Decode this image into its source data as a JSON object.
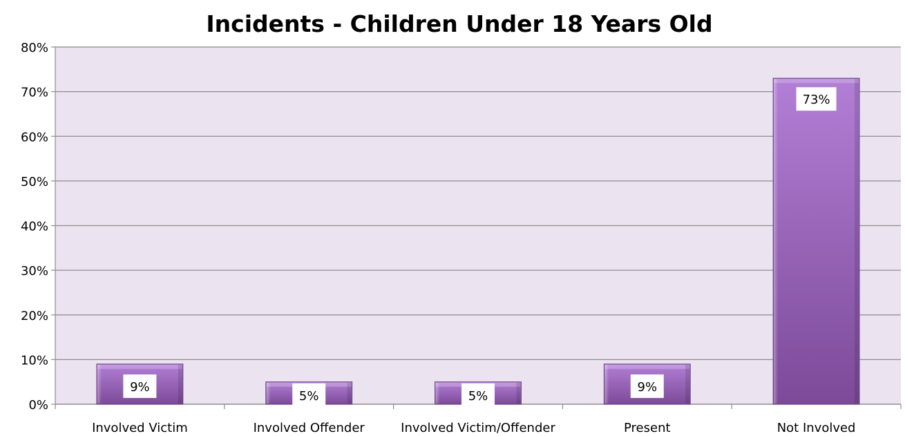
{
  "chart_data": {
    "type": "bar",
    "title": "Incidents - Children Under 18 Years Old",
    "xlabel": "",
    "ylabel": "",
    "categories": [
      "Involved Victim",
      "Involved Offender",
      "Involved Victim/Offender",
      "Present",
      "Not Involved"
    ],
    "values": [
      9,
      5,
      5,
      9,
      73
    ],
    "data_labels": [
      "9%",
      "5%",
      "5%",
      "9%",
      "73%"
    ],
    "ylim": [
      0,
      80
    ],
    "yticks": [
      0,
      10,
      20,
      30,
      40,
      50,
      60,
      70,
      80
    ],
    "ytick_labels": [
      "0%",
      "10%",
      "20%",
      "30%",
      "40%",
      "50%",
      "60%",
      "70%",
      "80%"
    ],
    "grid": true,
    "legend": "none",
    "colors": {
      "plot_background": "#ebe3f0",
      "bar_top": "#b27fd6",
      "bar_bottom": "#7c4a98",
      "bar_edge": "#6a3d84",
      "gridline": "#8c8c8c",
      "label_box": "#ffffff"
    }
  }
}
